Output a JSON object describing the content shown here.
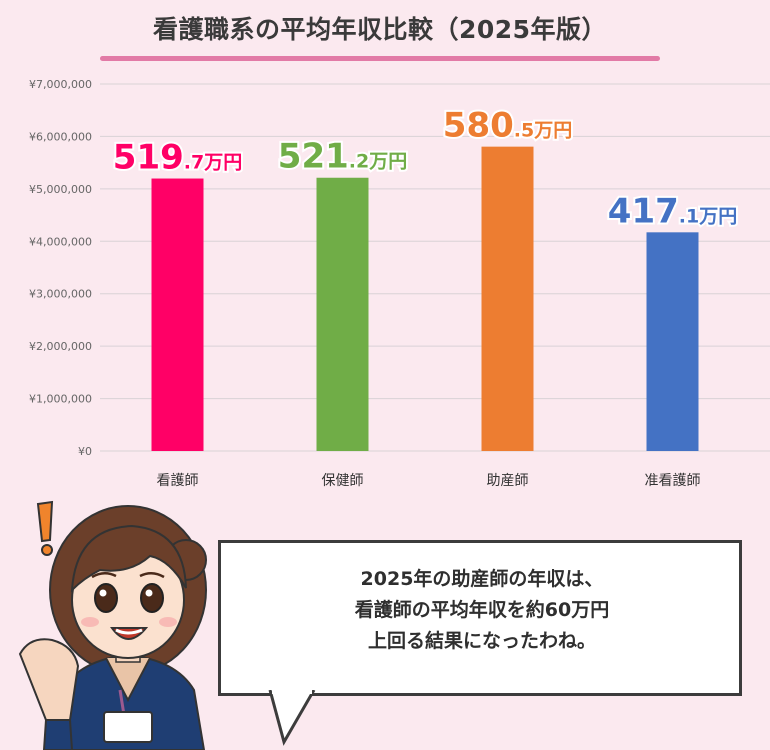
{
  "title": "看護職系の平均年収比較（2025年版）",
  "colors": {
    "background": "#fbe9ef",
    "title_underline": "#e27aa6",
    "grid": "#d9d2d6"
  },
  "chart_data": {
    "type": "bar",
    "title": "看護職系の平均年収比較（2025年版）",
    "categories": [
      "看護師",
      "保健師",
      "助産師",
      "准看護師"
    ],
    "values": [
      5197000,
      5212000,
      5805000,
      4171000
    ],
    "colors": [
      "#ff0066",
      "#70ad47",
      "#ed7d31",
      "#4472c4"
    ],
    "ylim": [
      0,
      7000000
    ],
    "yticks": [
      "¥0",
      "¥1,000,000",
      "¥2,000,000",
      "¥3,000,000",
      "¥4,000,000",
      "¥5,000,000",
      "¥6,000,000",
      "¥7,000,000"
    ],
    "grid": true,
    "data_labels": [
      {
        "main": "519",
        "frac": ".7万円"
      },
      {
        "main": "521",
        "frac": ".2万円"
      },
      {
        "main": "580",
        "frac": ".5万円"
      },
      {
        "main": "417",
        "frac": ".1万円"
      }
    ]
  },
  "speech_bubble": {
    "lines": [
      "2025年の助産師の年収は、",
      "看護師の平均年収を約60万円",
      "上回る結果になったわね。"
    ]
  },
  "character": {
    "exclamation": "!",
    "badge": ""
  }
}
